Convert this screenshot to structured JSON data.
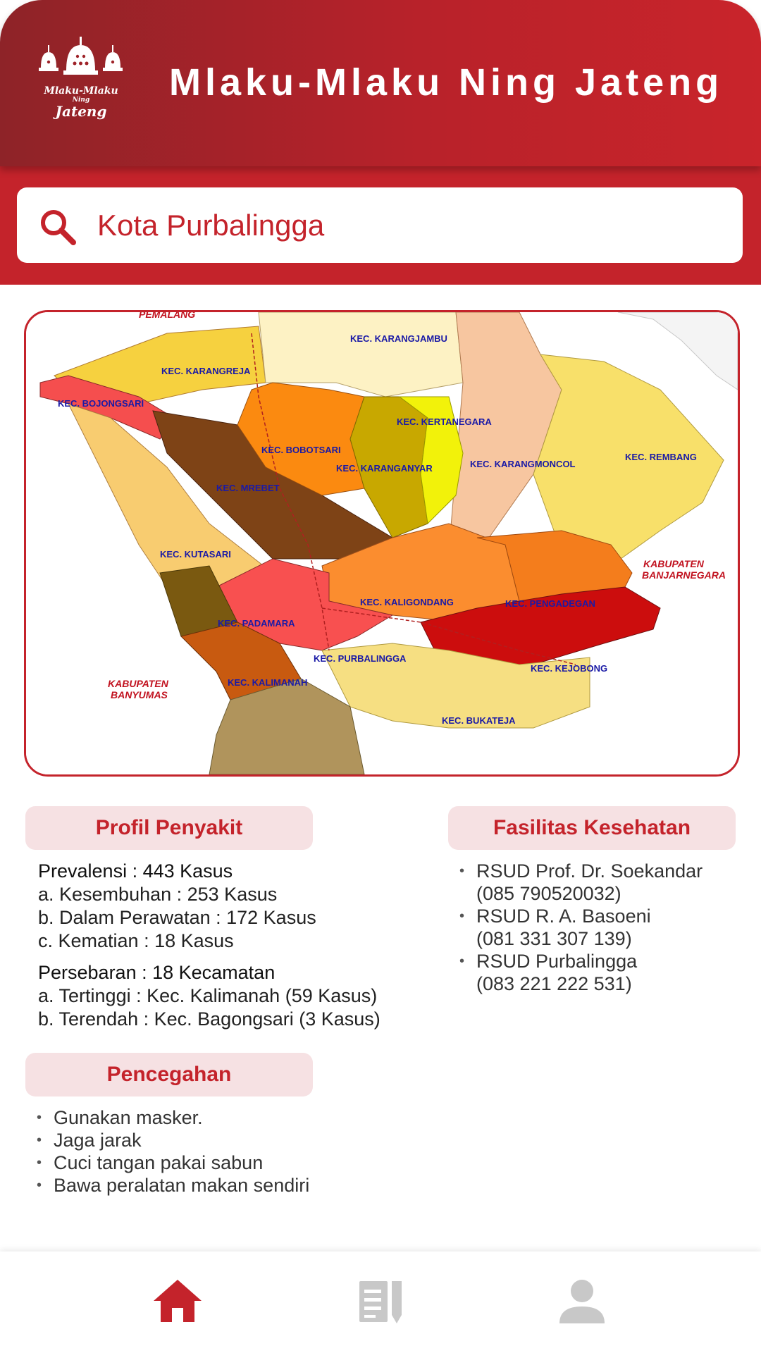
{
  "header": {
    "title": "Mlaku-Mlaku Ning Jateng",
    "logo": {
      "line1": "Mlaku-Mlaku",
      "line2": "Ning",
      "line3": "Jateng"
    }
  },
  "search": {
    "value": "Kota Purbalingga",
    "icon": "search-icon"
  },
  "map": {
    "kabupaten": {
      "pemalang": "PEMALANG",
      "banjarnegara_1": "KABUPATEN",
      "banjarnegara_2": "BANJARNEGARA",
      "banyumas_1": "KABUPATEN",
      "banyumas_2": "BANYUMAS"
    },
    "kecamatan": {
      "karangjambu": "KEC. KARANGJAMBU",
      "karangreja": "KEC. KARANGREJA",
      "bojongsari": "KEC. BOJONGSARI",
      "kertanegara": "KEC. KERTANEGARA",
      "bobotsari": "KEC. BOBOTSARI",
      "karanganyar": "KEC. KARANGANYAR",
      "karangmoncol": "KEC. KARANGMONCOL",
      "rembang": "KEC. REMBANG",
      "mrebet": "KEC. MREBET",
      "kutasari": "KEC. KUTASARI",
      "kaligondang": "KEC. KALIGONDANG",
      "pengadegan": "KEC. PENGADEGAN",
      "padamara": "KEC. PADAMARA",
      "purbalingga": "KEC. PURBALINGGA",
      "kejobong": "KEC. KEJOBONG",
      "kalimanah": "KEC. KALIMANAH",
      "bukateja": "KEC. BUKATEJA"
    }
  },
  "profil": {
    "title": "Profil Penyakit",
    "prevalensi": "Prevalensi : 443 Kasus",
    "kesembuhan": "a. Kesembuhan : 253 Kasus",
    "perawatan": "b. Dalam Perawatan : 172 Kasus",
    "kematian": "c. Kematian : 18 Kasus",
    "persebaran": "Persebaran : 18 Kecamatan",
    "tertinggi": "a. Tertinggi : Kec. Kalimanah (59 Kasus)",
    "terendah": "b. Terendah : Kec. Bagongsari (3 Kasus)"
  },
  "fasilitas": {
    "title": "Fasilitas Kesehatan",
    "items": [
      {
        "name": "RSUD Prof. Dr. Soekandar",
        "phone": "(085 790520032)"
      },
      {
        "name": "RSUD R. A. Basoeni",
        "phone": "(081 331 307 139)"
      },
      {
        "name": "RSUD Purbalingga",
        "phone": "(083 221 222 531)"
      }
    ]
  },
  "pencegahan": {
    "title": "Pencegahan",
    "items": [
      "Gunakan masker.",
      "Jaga jarak",
      "Cuci tangan pakai sabun",
      "Bawa peralatan makan sendiri"
    ]
  },
  "nav": {
    "home": {
      "icon": "home-icon",
      "active": true,
      "color": "#c4232b"
    },
    "articles": {
      "icon": "articles-icon",
      "active": false,
      "color": "#c8c8c8"
    },
    "profile": {
      "icon": "profile-icon",
      "active": false,
      "color": "#c8c8c8"
    }
  },
  "colors": {
    "brand": "#c4232b",
    "brand_dark": "#8e2328",
    "pill_bg": "#f6e1e3"
  }
}
